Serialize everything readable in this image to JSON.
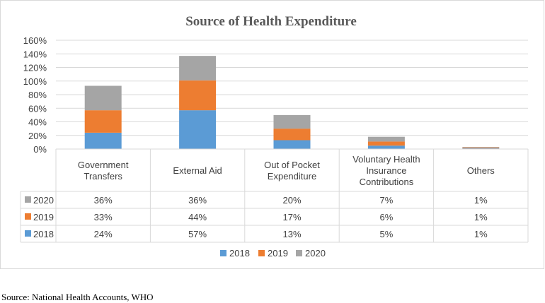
{
  "chart_data": {
    "type": "bar",
    "stacked": true,
    "title": "Source of Health Expenditure",
    "categories": [
      [
        "Government",
        "Transfers"
      ],
      [
        "External Aid"
      ],
      [
        "Out of Pocket",
        "Expenditure"
      ],
      [
        "Voluntary Health",
        "Insurance",
        "Contributions"
      ],
      [
        "Others"
      ]
    ],
    "series": [
      {
        "name": "2018",
        "color": "#5b9bd5",
        "values": [
          24,
          57,
          13,
          5,
          1
        ],
        "labels": [
          "24%",
          "57%",
          "13%",
          "5%",
          "1%"
        ]
      },
      {
        "name": "2019",
        "color": "#ed7d31",
        "values": [
          33,
          44,
          17,
          6,
          1
        ],
        "labels": [
          "33%",
          "44%",
          "17%",
          "6%",
          "1%"
        ]
      },
      {
        "name": "2020",
        "color": "#a5a5a5",
        "values": [
          36,
          36,
          20,
          7,
          1
        ],
        "labels": [
          "36%",
          "36%",
          "20%",
          "7%",
          "1%"
        ]
      }
    ],
    "ylim": [
      0,
      160
    ],
    "yticks": [
      "0%",
      "20%",
      "40%",
      "60%",
      "80%",
      "100%",
      "120%",
      "140%",
      "160%"
    ],
    "ytick_values": [
      0,
      20,
      40,
      60,
      80,
      100,
      120,
      140,
      160
    ],
    "grid": true,
    "data_table": true,
    "legend_position": "bottom"
  },
  "source_note": "Source: National Health Accounts, WHO"
}
